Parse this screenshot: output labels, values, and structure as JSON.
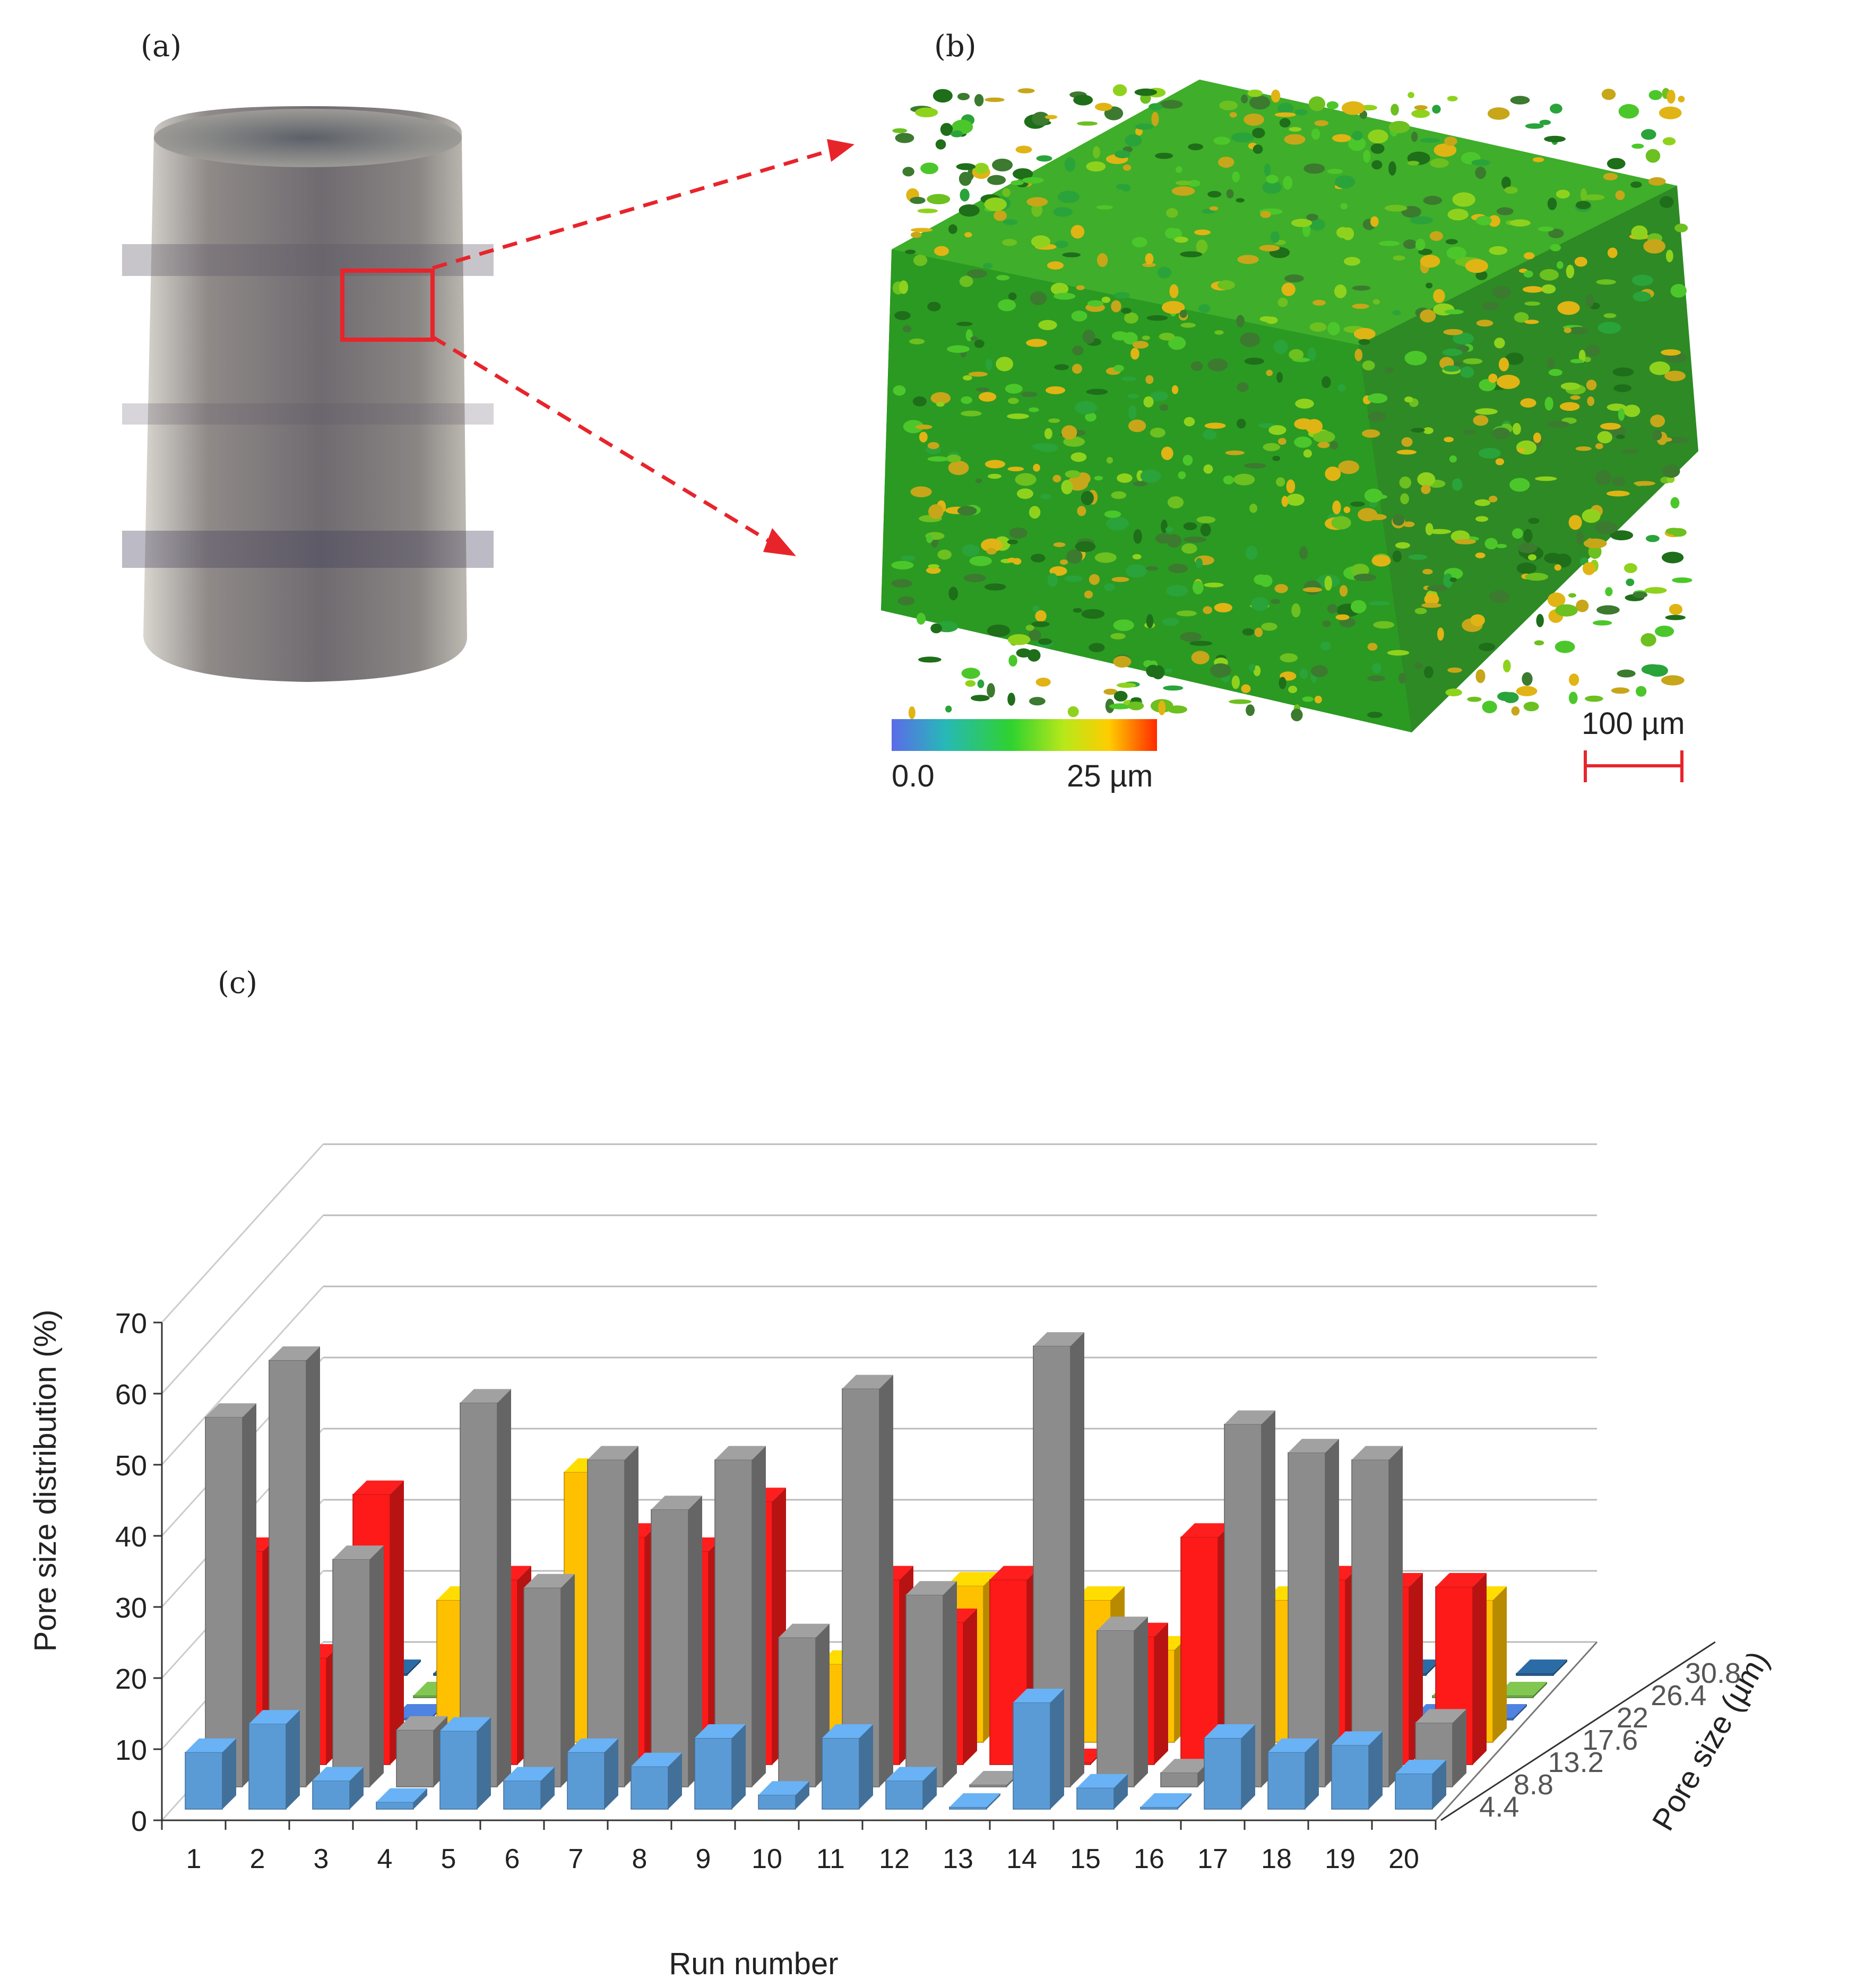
{
  "panels": {
    "a": "(a)",
    "b": "(b)",
    "c": "(c)"
  },
  "colorbar": {
    "min_label": "0.0",
    "max_label": "25 µm"
  },
  "scalebar": {
    "label": "100 µm"
  },
  "colors": {
    "4.4": "#5b9bd5",
    "8.8": "#8c8c8c",
    "13.2": "#ff1a1a",
    "17.6": "#ffc000",
    "22": "#4472c4",
    "26.4": "#70ad47",
    "30.8": "#255e91",
    "annotation_red": "#e8242b"
  },
  "chart_data": {
    "type": "bar3d",
    "title": "",
    "xlabel": "Run number",
    "ylabel": "Pore size distribution (%)",
    "zlabel": "Pore size (µm)",
    "ylim": [
      0,
      70
    ],
    "yticks": [
      "0",
      "10",
      "20",
      "30",
      "40",
      "50",
      "60",
      "70"
    ],
    "categories": [
      "1",
      "2",
      "3",
      "4",
      "5",
      "6",
      "7",
      "8",
      "9",
      "10",
      "11",
      "12",
      "13",
      "14",
      "15",
      "16",
      "17",
      "18",
      "19",
      "20"
    ],
    "depth_labels": [
      "4.4",
      "8.8",
      "13.2",
      "17.6",
      "22",
      "26.4",
      "30.8"
    ],
    "series": [
      {
        "name": "4.4",
        "values": [
          8,
          12,
          4,
          1,
          11,
          4,
          8,
          6,
          10,
          2,
          10,
          4,
          0,
          15,
          3,
          0,
          10,
          8,
          9,
          5
        ]
      },
      {
        "name": "8.8",
        "values": [
          52,
          60,
          32,
          8,
          54,
          28,
          46,
          39,
          46,
          21,
          56,
          27,
          0,
          62,
          22,
          2,
          51,
          47,
          46,
          9
        ]
      },
      {
        "name": "13.2",
        "values": [
          30,
          15,
          38,
          0,
          26,
          0,
          32,
          30,
          37,
          0,
          26,
          20,
          26,
          0,
          18,
          32,
          0,
          26,
          25,
          25
        ]
      },
      {
        "name": "17.6",
        "values": [
          0,
          0,
          0,
          20,
          0,
          38,
          0,
          19,
          0,
          11,
          0,
          22,
          0,
          20,
          13,
          0,
          20,
          0,
          0,
          20
        ]
      },
      {
        "name": "22",
        "values": [
          0,
          0,
          0,
          0,
          0,
          0,
          0,
          0,
          0,
          0,
          0,
          0,
          0,
          0,
          0,
          0,
          0,
          0,
          0,
          0
        ]
      },
      {
        "name": "26.4",
        "values": [
          0,
          0,
          0,
          0,
          0,
          0,
          0,
          0,
          0,
          0,
          0,
          0,
          0,
          0,
          0,
          0,
          0,
          0,
          0,
          0
        ]
      },
      {
        "name": "30.8",
        "values": [
          0,
          0,
          0,
          0,
          0,
          0,
          0,
          0,
          0,
          0,
          0,
          0,
          0,
          0,
          0,
          0,
          0,
          0,
          0,
          0
        ]
      }
    ]
  }
}
